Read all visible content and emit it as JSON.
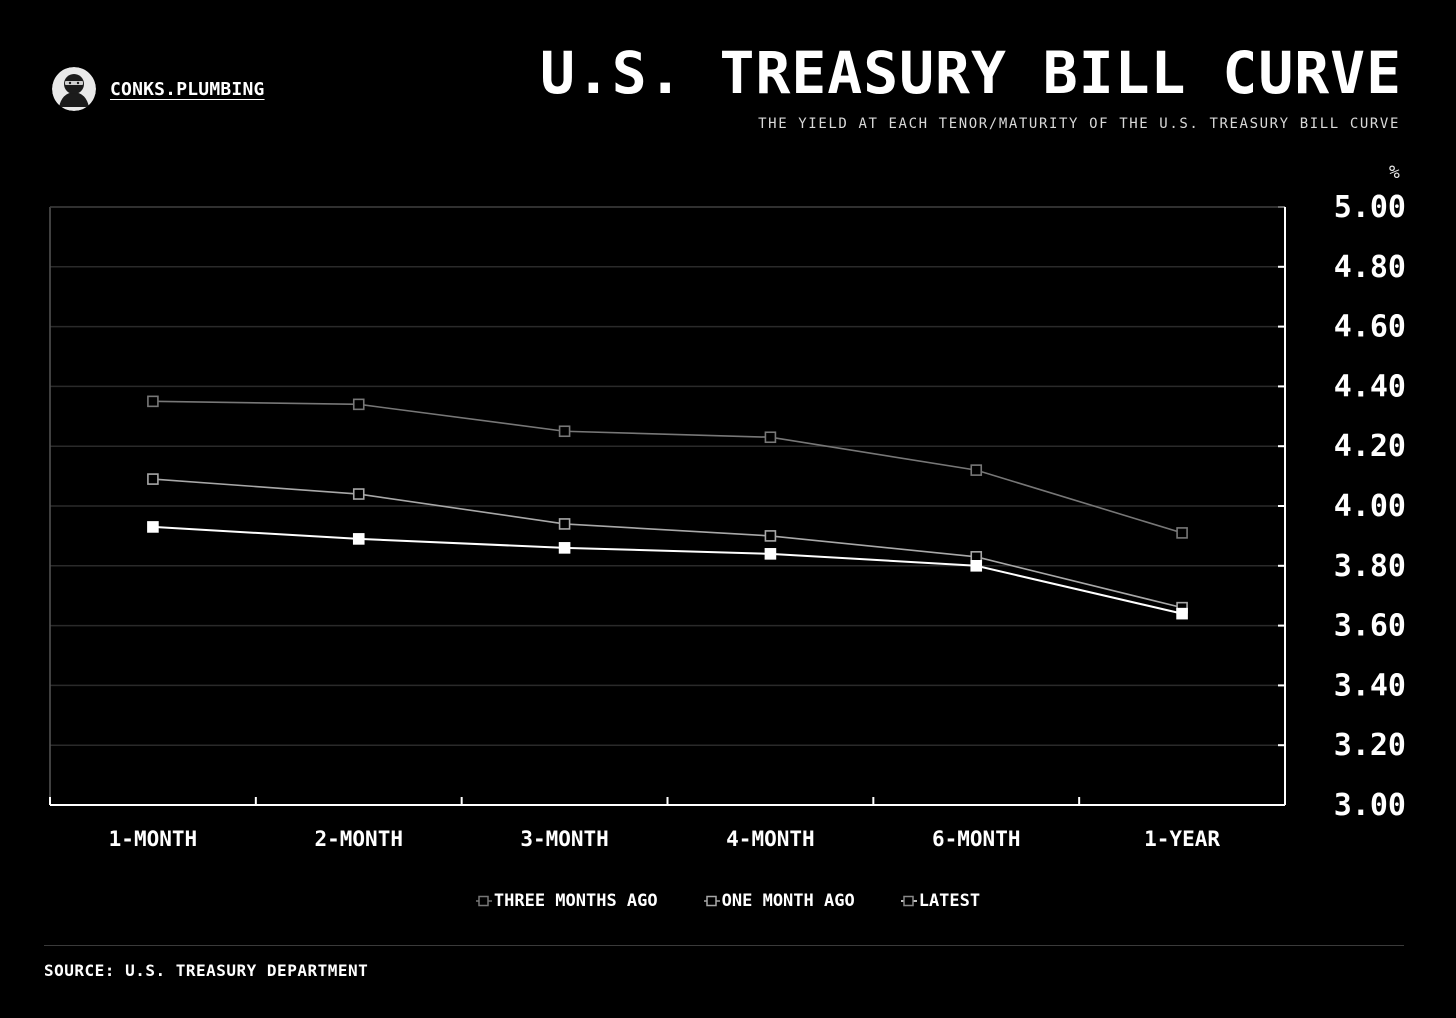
{
  "brand": {
    "name": "CONKS.PLUMBING"
  },
  "header": {
    "title": "U.S. TREASURY BILL CURVE",
    "subtitle": "THE YIELD AT EACH TENOR/MATURITY OF THE U.S. TREASURY BILL CURVE"
  },
  "footer": {
    "source": "SOURCE: U.S. TREASURY DEPARTMENT"
  },
  "colors": {
    "background": "#000000",
    "grid": "#2a2a2a",
    "axis": "#ffffff"
  },
  "chart_data": {
    "type": "line",
    "title": "U.S. TREASURY BILL CURVE",
    "ylabel": "%",
    "xlabel": "",
    "categories": [
      "1-MONTH",
      "2-MONTH",
      "3-MONTH",
      "4-MONTH",
      "6-MONTH",
      "1-YEAR"
    ],
    "ylim": [
      3.0,
      5.0
    ],
    "yticks": [
      "5.00",
      "4.80",
      "4.60",
      "4.40",
      "4.20",
      "4.00",
      "3.80",
      "3.60",
      "3.40",
      "3.20",
      "3.00"
    ],
    "grid": true,
    "axis_side": "right",
    "legend_position": "bottom-center",
    "series": [
      {
        "name": "THREE MONTHS AGO",
        "color": "#777777",
        "marker": "hollow-square",
        "values": [
          4.35,
          4.34,
          4.25,
          4.23,
          4.12,
          3.91
        ]
      },
      {
        "name": "ONE MONTH AGO",
        "color": "#a8a8a8",
        "marker": "hollow-square",
        "values": [
          4.09,
          4.04,
          3.94,
          3.9,
          3.83,
          3.66
        ]
      },
      {
        "name": "LATEST",
        "color": "#ffffff",
        "marker": "filled-square",
        "values": [
          3.93,
          3.89,
          3.86,
          3.84,
          3.8,
          3.64
        ]
      }
    ]
  }
}
